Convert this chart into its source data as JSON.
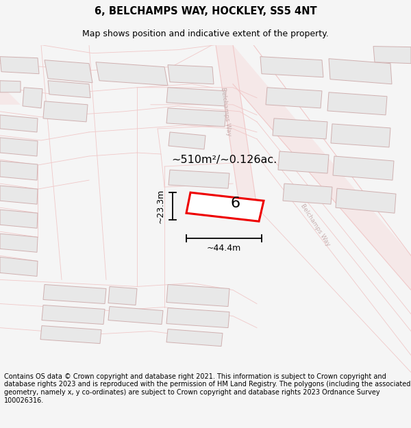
{
  "title": "6, BELCHAMPS WAY, HOCKLEY, SS5 4NT",
  "subtitle": "Map shows position and indicative extent of the property.",
  "footer": "Contains OS data © Crown copyright and database right 2021. This information is subject to Crown copyright and database rights 2023 and is reproduced with the permission of HM Land Registry. The polygons (including the associated geometry, namely x, y co-ordinates) are subject to Crown copyright and database rights 2023 Ordnance Survey 100026316.",
  "area_label": "~510m²/~0.126ac.",
  "width_label": "~44.4m",
  "height_label": "~23.3m",
  "plot_number": "6",
  "map_bg": "#ffffff",
  "road_line_color": "#f0c8c8",
  "road_fill_color": "#f8ecec",
  "building_fill": "#e8e8e8",
  "building_stroke": "#d0b0b0",
  "plot_fill": "#ffffff",
  "plot_stroke": "#ee0000",
  "road_label_color": "#c8b0b0",
  "title_fontsize": 10.5,
  "subtitle_fontsize": 9,
  "footer_fontsize": 7.0
}
